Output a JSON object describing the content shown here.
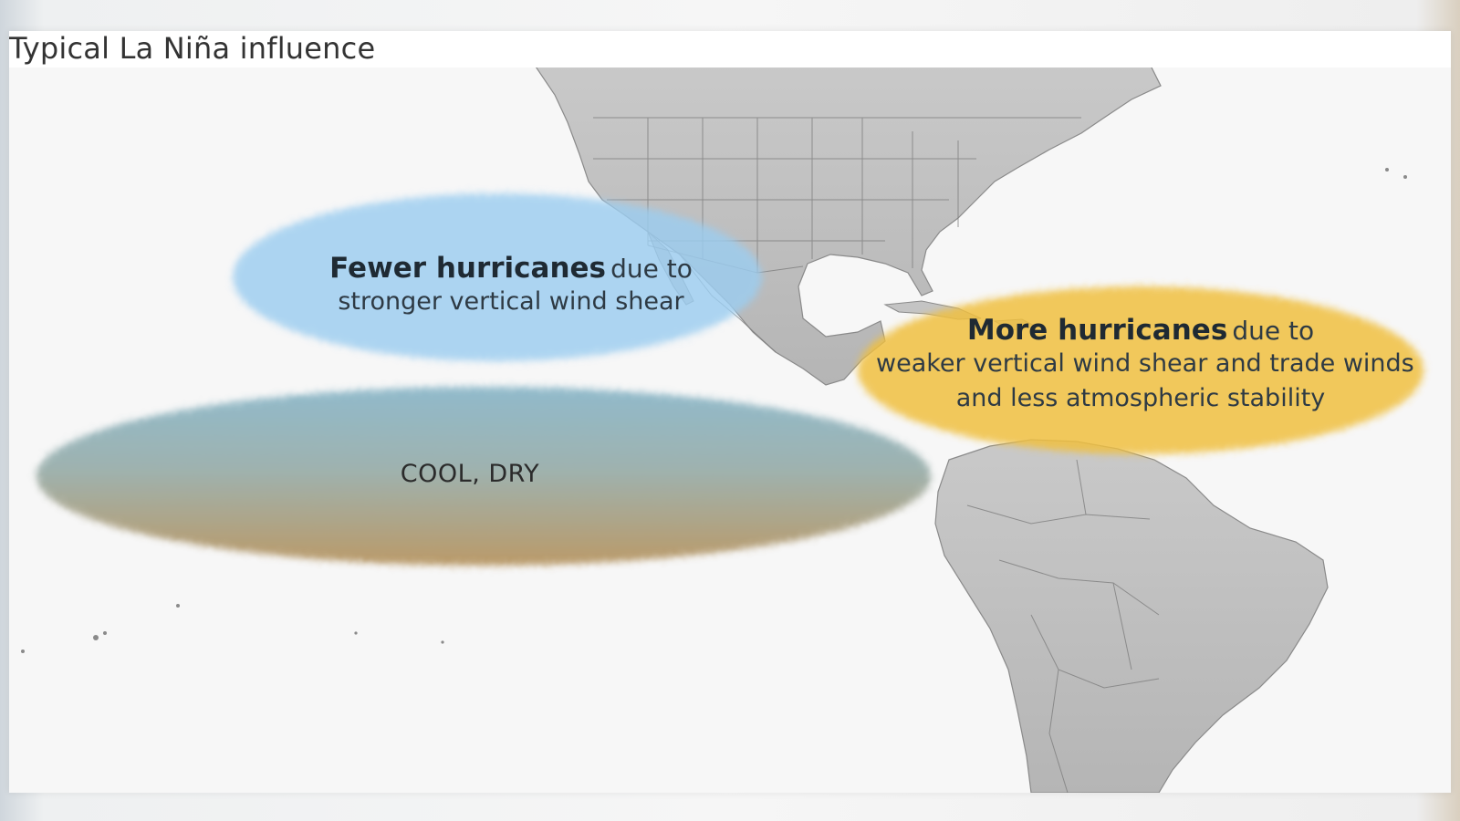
{
  "title": "Typical La Niña influence",
  "regions": {
    "fewer": {
      "headline": "Fewer hurricanes",
      "suffix": "due to",
      "detail": "stronger vertical wind shear",
      "color": "#9ccdf0"
    },
    "more": {
      "headline": "More hurricanes",
      "suffix": "due to",
      "detail_line1": "weaker vertical wind shear and trade winds",
      "detail_line2": "and less atmospheric stability",
      "color": "#f0c040"
    },
    "cool_dry": {
      "label": "COOL, DRY",
      "color_top": "#7fb0c4",
      "color_bottom": "#b08a50"
    }
  },
  "map": {
    "land_color": "#bdbdbd",
    "border_color": "#7a7a7a",
    "ocean_color": "#f7f7f7"
  }
}
